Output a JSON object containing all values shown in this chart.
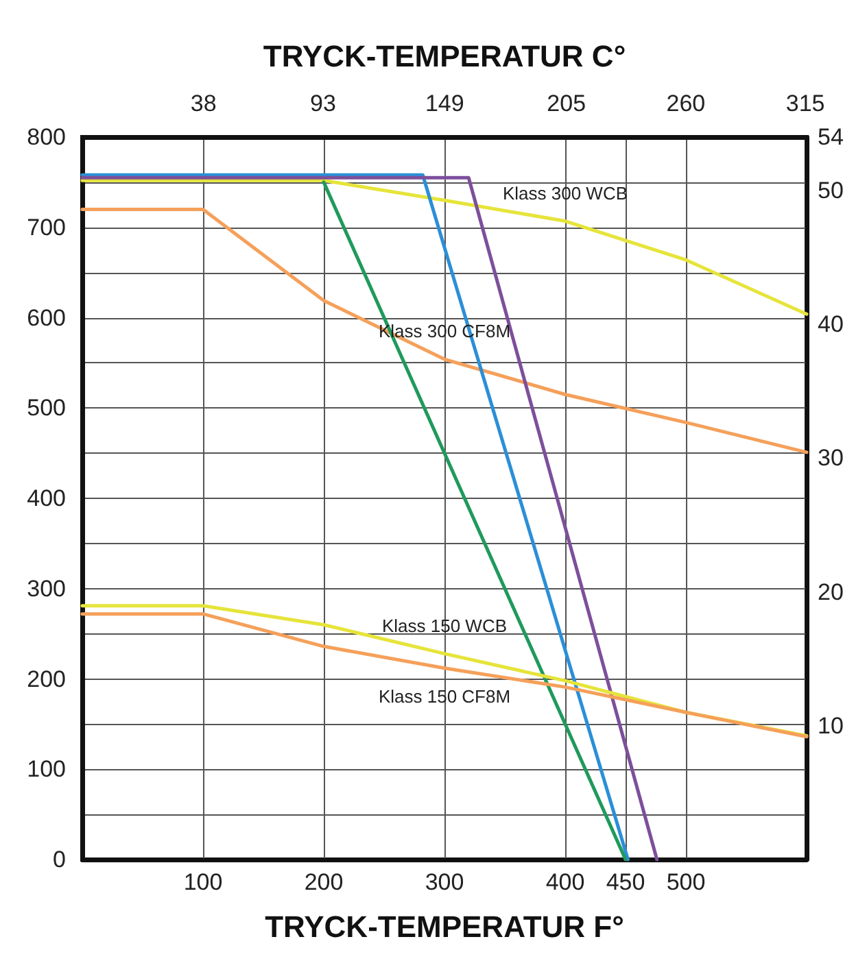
{
  "chart_data": {
    "type": "line",
    "xlabel": "TRYCK-TEMPERATUR F°",
    "x2label": "TRYCK-TEMPERATUR C°",
    "xlim": [
      0,
      600
    ],
    "xticks": [
      100,
      200,
      300,
      400,
      450,
      500
    ],
    "x2lim": [
      -17.8,
      315.6
    ],
    "x2ticks": [
      38,
      93,
      149,
      205,
      260,
      315
    ],
    "ylim": [
      0,
      800
    ],
    "yticks": [
      0,
      {
        "value": 50,
        "label": null
      },
      100,
      {
        "value": 150,
        "label": null
      },
      200,
      {
        "value": 250,
        "label": null
      },
      300,
      {
        "value": 350,
        "label": null
      },
      400,
      {
        "value": 450,
        "label": null
      },
      500,
      {
        "value": 550,
        "label": null
      },
      600,
      {
        "value": 650,
        "label": null
      },
      700,
      {
        "value": 750,
        "label": null
      },
      800
    ],
    "y2lim": [
      0,
      54
    ],
    "y2ticks": [
      10,
      20,
      30,
      40,
      50,
      54
    ],
    "grid": true,
    "legend": false,
    "marker": "none",
    "line_style": "solid",
    "series": [
      {
        "name": "Klass 300 WCB",
        "color": "#e6e43a",
        "x": [
          0,
          200,
          300,
          400,
          500,
          600
        ],
        "values": [
          752,
          752,
          730,
          707,
          664,
          604
        ]
      },
      {
        "name": "Klass 300 CF8M",
        "color": "#f5a05a",
        "x": [
          0,
          100,
          200,
          300,
          400,
          500,
          600
        ],
        "values": [
          720,
          720,
          619,
          554,
          515,
          484,
          451
        ]
      },
      {
        "color": "#2b8fd6",
        "x": [
          0,
          282,
          452
        ],
        "values": [
          758,
          758,
          0
        ]
      },
      {
        "color": "#7d4f9b",
        "x": [
          0,
          320,
          476
        ],
        "values": [
          755,
          755,
          0
        ]
      },
      {
        "color": "#1f9a5c",
        "x": [
          200,
          450
        ],
        "values": [
          750,
          0
        ]
      },
      {
        "name": "Klass 150 WCB",
        "color": "#e6e43a",
        "x": [
          0,
          100,
          200,
          300,
          400,
          500,
          600
        ],
        "values": [
          281,
          281,
          260,
          228,
          198,
          163,
          137
        ]
      },
      {
        "name": "Klass 150 CF8M",
        "color": "#f5a05a",
        "x": [
          0,
          100,
          200,
          300,
          400,
          500,
          600
        ],
        "values": [
          272,
          272,
          236,
          212,
          191,
          163,
          136
        ]
      }
    ]
  }
}
